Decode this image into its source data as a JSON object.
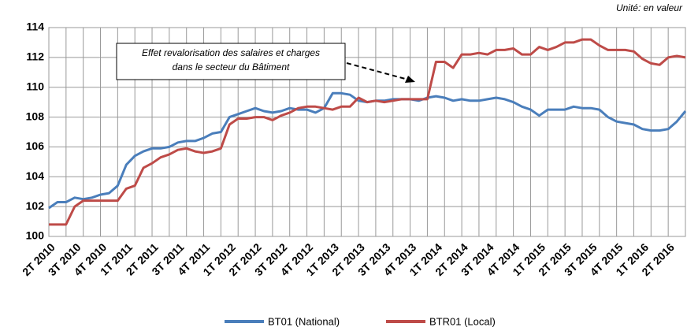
{
  "chart_data": {
    "type": "line",
    "unit_note": "Unité: en valeur",
    "annotation": [
      "Effet revalorisation des salaires et charges",
      "dans le secteur du Bâtiment"
    ],
    "categories": [
      "2T 2010",
      null,
      null,
      "3T 2010",
      null,
      null,
      "4T 2010",
      null,
      null,
      "1T 2011",
      null,
      null,
      "2T 2011",
      null,
      null,
      "3T 2011",
      null,
      null,
      "4T 2011",
      null,
      null,
      "1T 2012",
      null,
      null,
      "2T 2012",
      null,
      null,
      "3T 2012",
      null,
      null,
      "4T 2012",
      null,
      null,
      "1T 2013",
      null,
      null,
      "2T 2013",
      null,
      null,
      "3T 2013",
      null,
      null,
      "4T 2013",
      null,
      null,
      "1T 2014",
      null,
      null,
      "2T 2014",
      null,
      null,
      "3T 2014",
      null,
      null,
      "4T 2014",
      null,
      null,
      "1T 2015",
      null,
      null,
      "2T 2015",
      null,
      null,
      "3T 2015",
      null,
      null,
      "4T 2015",
      null,
      null,
      "1T 2016",
      null,
      null,
      "2T 2016",
      null,
      null
    ],
    "series": [
      {
        "name": "BT01 (National)",
        "color": "#4a7ebb",
        "values": [
          101.9,
          102.3,
          102.3,
          102.6,
          102.5,
          102.6,
          102.8,
          102.9,
          103.4,
          104.8,
          105.4,
          105.7,
          105.9,
          105.9,
          106.0,
          106.3,
          106.4,
          106.4,
          106.6,
          106.9,
          107.0,
          108.0,
          108.2,
          108.4,
          108.6,
          108.4,
          108.3,
          108.4,
          108.6,
          108.5,
          108.5,
          108.3,
          108.6,
          109.6,
          109.6,
          109.5,
          109.1,
          109.0,
          109.1,
          109.1,
          109.2,
          109.2,
          109.2,
          109.1,
          109.3,
          109.4,
          109.3,
          109.1,
          109.2,
          109.1,
          109.1,
          109.2,
          109.3,
          109.2,
          109.0,
          108.7,
          108.5,
          108.1,
          108.5,
          108.5,
          108.5,
          108.7,
          108.6,
          108.6,
          108.5,
          108.0,
          107.7,
          107.6,
          107.5,
          107.2,
          107.1,
          107.1,
          107.2,
          107.7,
          108.4
        ]
      },
      {
        "name": "BTR01 (Local)",
        "color": "#be4b48",
        "values": [
          100.8,
          100.8,
          100.8,
          102.0,
          102.4,
          102.4,
          102.4,
          102.4,
          102.4,
          103.2,
          103.4,
          104.6,
          104.9,
          105.3,
          105.5,
          105.8,
          105.9,
          105.7,
          105.6,
          105.7,
          105.9,
          107.5,
          107.9,
          107.9,
          108.0,
          108.0,
          107.8,
          108.1,
          108.3,
          108.6,
          108.7,
          108.7,
          108.6,
          108.5,
          108.7,
          108.7,
          109.3,
          109.0,
          109.1,
          109.0,
          109.1,
          109.2,
          109.2,
          109.2,
          109.2,
          111.7,
          111.7,
          111.3,
          112.2,
          112.2,
          112.3,
          112.2,
          112.5,
          112.5,
          112.6,
          112.2,
          112.2,
          112.7,
          112.5,
          112.7,
          113.0,
          113.0,
          113.2,
          113.2,
          112.8,
          112.5,
          112.5,
          112.5,
          112.4,
          111.9,
          111.6,
          111.5,
          112.0,
          112.1,
          112.0
        ]
      }
    ],
    "ylim": [
      100,
      114
    ],
    "yticks": [
      100,
      102,
      104,
      106,
      108,
      110,
      112,
      114
    ],
    "grid": true,
    "legend": "bottom"
  }
}
